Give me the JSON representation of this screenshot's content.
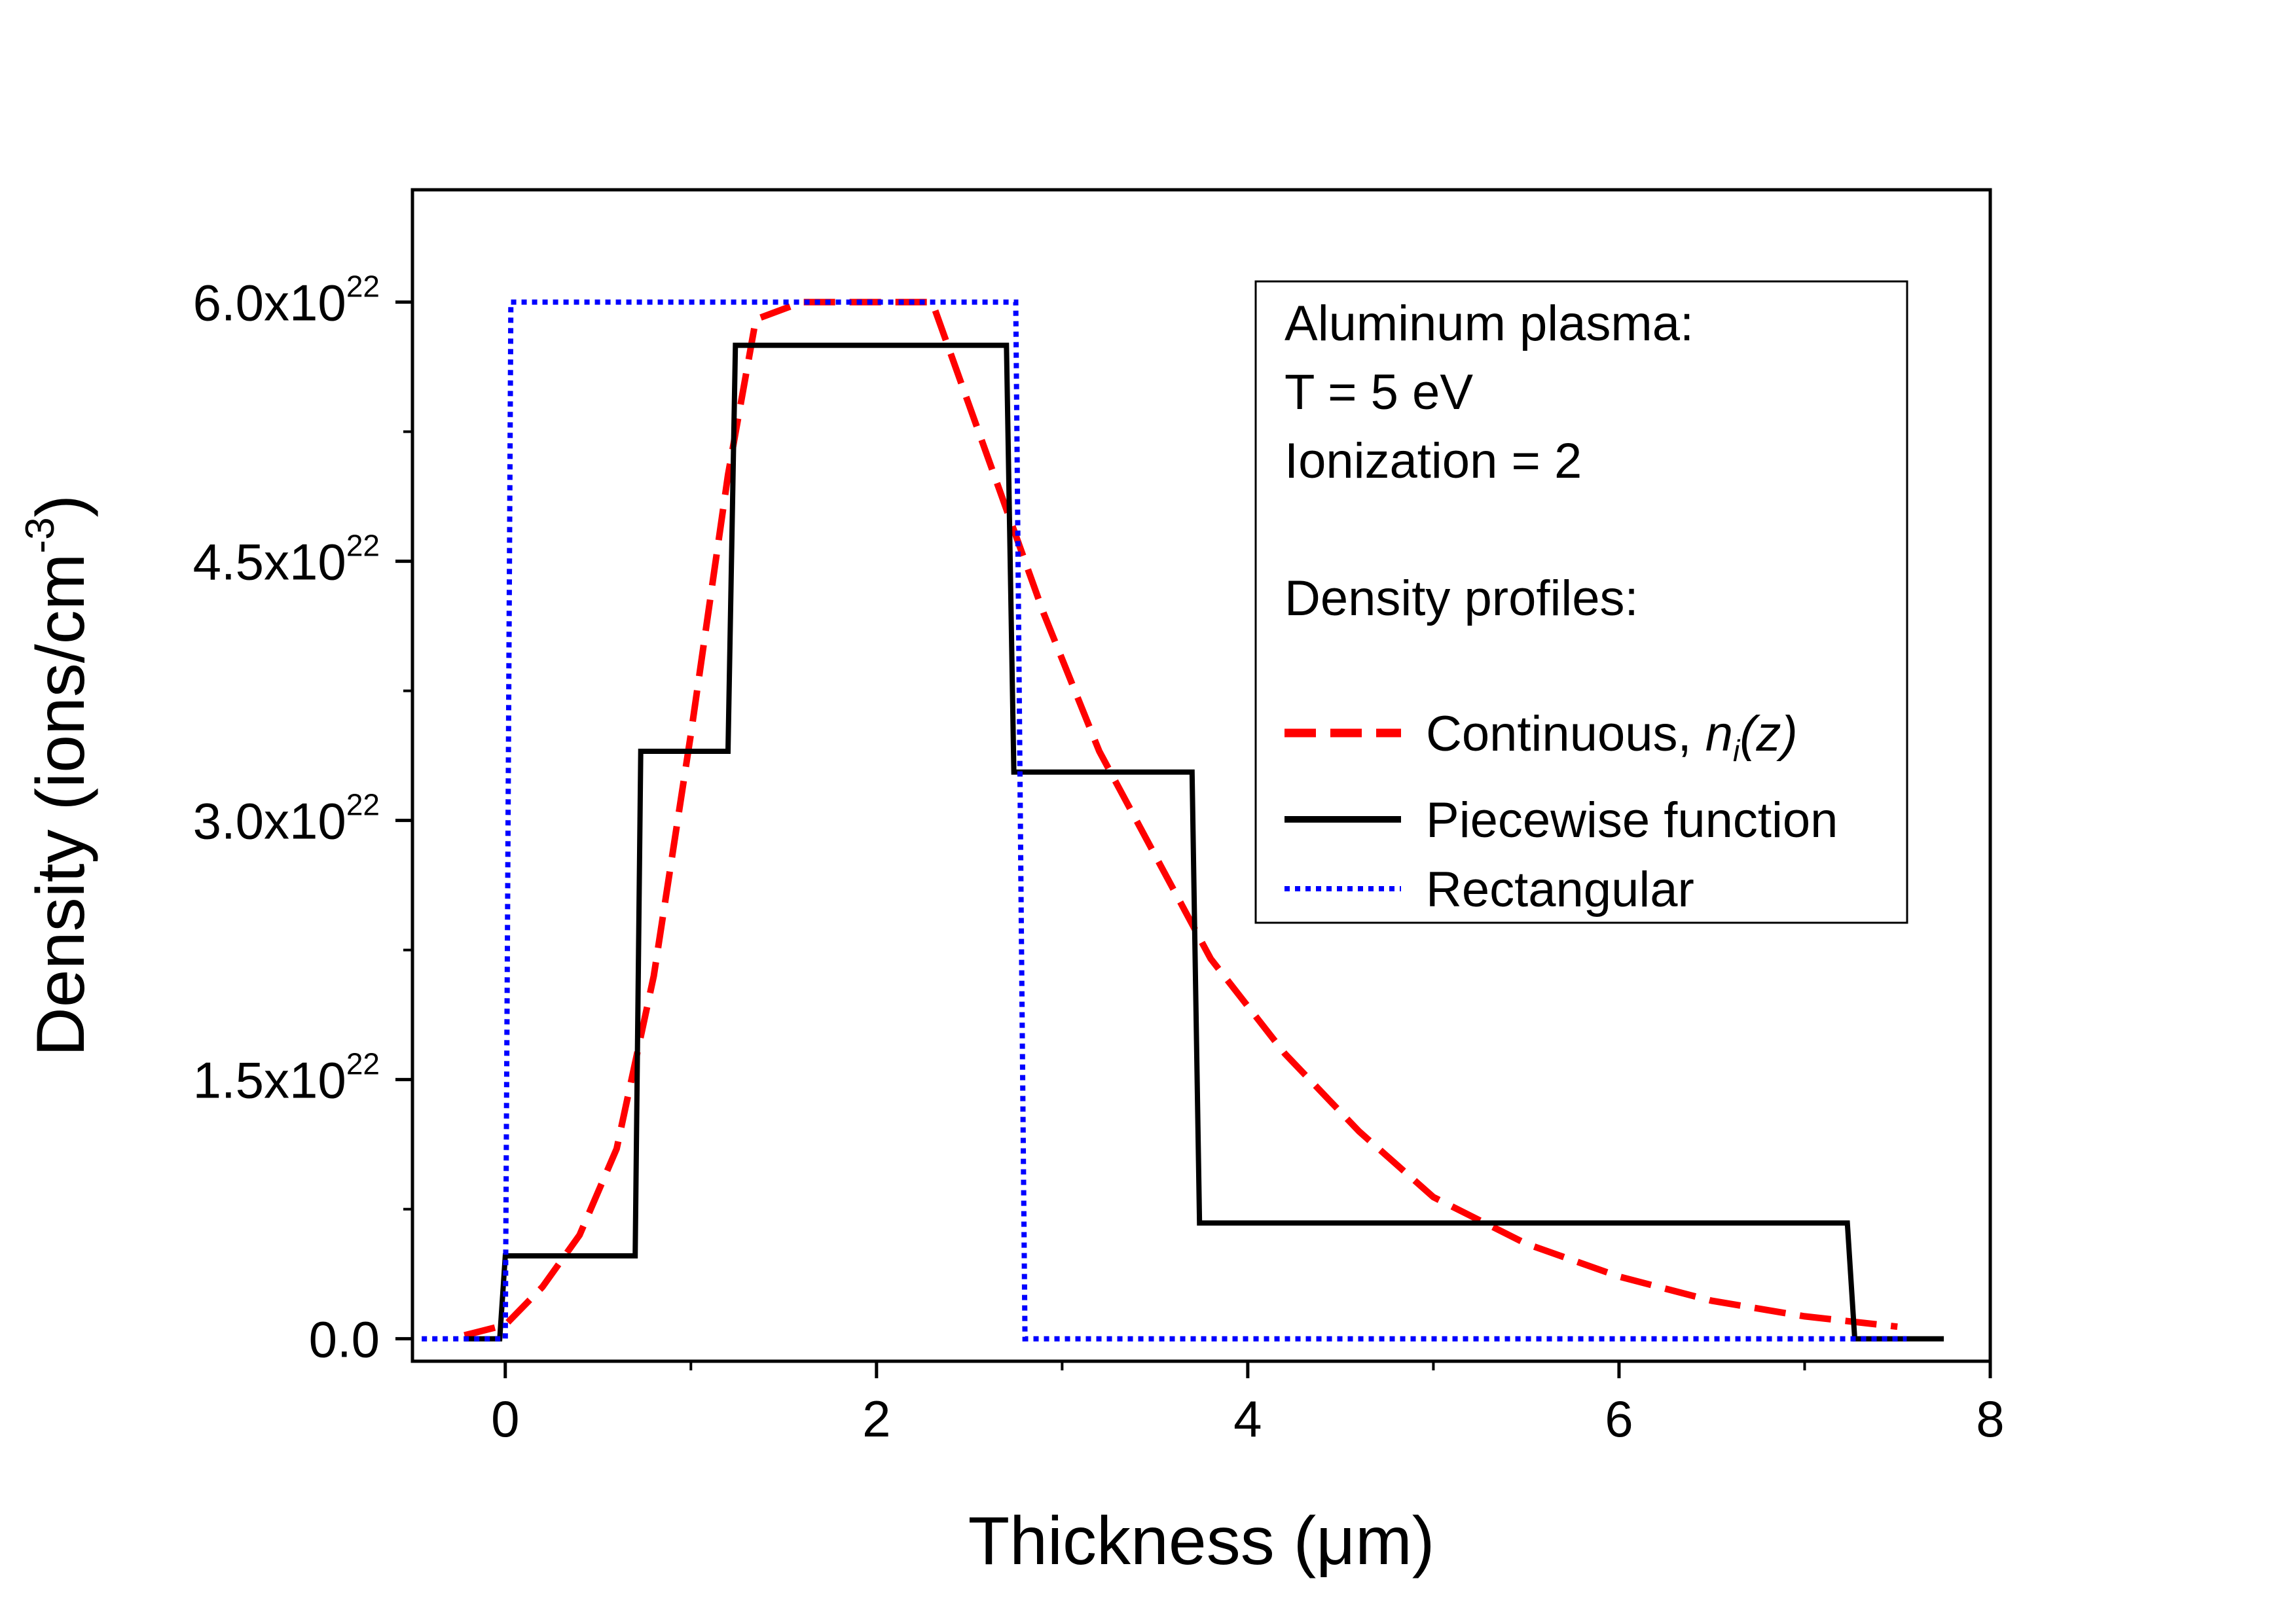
{
  "chart_data": {
    "type": "line",
    "title": "",
    "xlabel": "Thickness (μm)",
    "ylabel": "Density (ions/cm",
    "ylabel_sup": "-3",
    "ylabel_end": ")",
    "xlim": [
      -0.5,
      8
    ],
    "ylim": [
      -1.3e+21,
      6.65e+22
    ],
    "x_ticks": [
      0,
      2,
      4,
      6,
      8
    ],
    "x_tick_labels": [
      "0",
      "2",
      "4",
      "6",
      "8"
    ],
    "x_minor_ticks": [
      -1,
      1,
      3,
      5,
      7
    ],
    "y_ticks": [
      0,
      1.5e+22,
      3e+22,
      4.5e+22,
      6e+22
    ],
    "y_tick_labels": [
      {
        "text": "0.0",
        "sup": ""
      },
      {
        "text": "1.5x10",
        "sup": "22"
      },
      {
        "text": "3.0x10",
        "sup": "22"
      },
      {
        "text": "4.5x10",
        "sup": "22"
      },
      {
        "text": "6.0x10",
        "sup": "22"
      }
    ],
    "y_minor_ticks": [
      7.5e+21,
      2.25e+22,
      3.75e+22,
      5.25e+22
    ],
    "legend": {
      "position": "top-right",
      "header_lines": [
        "Aluminum plasma:",
        "T = 5 eV",
        "Ionization = 2",
        "",
        "Density profiles:"
      ],
      "entries": [
        {
          "label": "Continuous, ",
          "label_italic": "n",
          "label_sub": "i",
          "label_end": "(z)",
          "series": "continuous"
        },
        {
          "label": "Piecewise function",
          "series": "piecewise"
        },
        {
          "label": "Rectangular",
          "series": "rectangular"
        }
      ]
    },
    "series": [
      {
        "id": "continuous",
        "name": "Continuous, ni(z)",
        "color": "#ff0000",
        "style": "dashed",
        "x": [
          -0.22,
          0.0,
          0.2,
          0.4,
          0.6,
          0.8,
          1.0,
          1.2,
          1.35,
          1.6,
          2.0,
          2.3,
          2.5,
          2.7,
          2.9,
          3.2,
          3.5,
          3.8,
          4.2,
          4.6,
          5.0,
          5.5,
          6.0,
          6.5,
          7.0,
          7.5
        ],
        "y": [
          2e+20,
          8e+20,
          3e+21,
          6e+21,
          1.1e+22,
          2.1e+22,
          3.5e+22,
          5e+22,
          5.9e+22,
          6e+22,
          6e+22,
          6e+22,
          5.4e+22,
          4.8e+22,
          4.2e+22,
          3.4e+22,
          2.8e+22,
          2.2e+22,
          1.65e+22,
          1.2e+22,
          8.2e+21,
          5.5e+21,
          3.6e+21,
          2.2e+21,
          1.3e+21,
          7e+20
        ]
      },
      {
        "id": "piecewise",
        "name": "Piecewise function",
        "color": "#000000",
        "style": "solid",
        "x": [
          -0.22,
          -0.03,
          0.0,
          0.7,
          0.73,
          1.2,
          1.24,
          2.7,
          2.74,
          3.7,
          3.74,
          7.23,
          7.27,
          7.75
        ],
        "y": [
          0,
          0,
          4.8e+21,
          4.8e+21,
          3.4e+22,
          3.4e+22,
          5.75e+22,
          5.75e+22,
          3.28e+22,
          3.28e+22,
          6.7e+21,
          6.7e+21,
          0,
          0
        ]
      },
      {
        "id": "rectangular",
        "name": "Rectangular",
        "color": "#0000ff",
        "style": "dotted",
        "x": [
          -0.45,
          0.0,
          0.03,
          2.75,
          2.8,
          7.55
        ],
        "y": [
          0,
          0,
          6e+22,
          6e+22,
          0,
          0
        ]
      }
    ]
  }
}
